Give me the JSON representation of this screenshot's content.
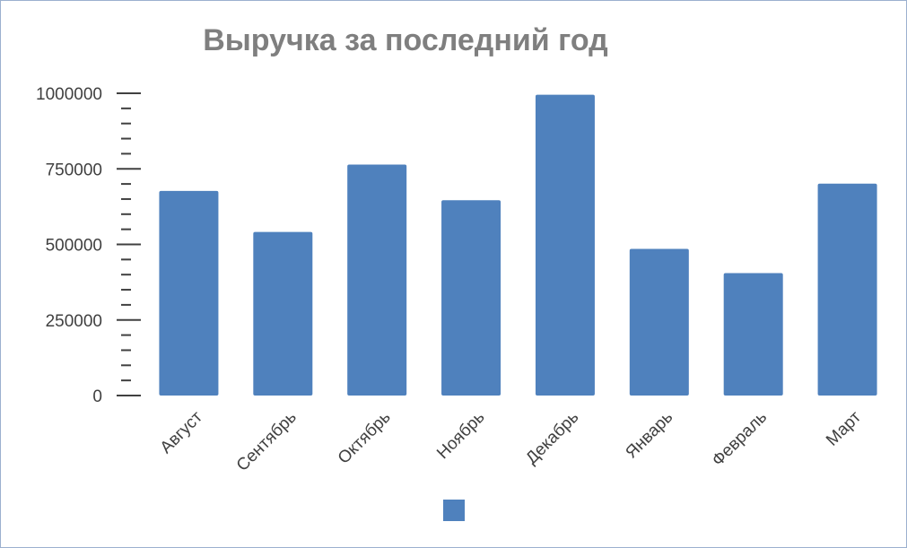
{
  "chart_data": {
    "type": "bar",
    "title": "Выручка за последний год",
    "categories": [
      "Август",
      "Сентябрь",
      "Октябрь",
      "Ноябрь",
      "Декабрь",
      "Январь",
      "Февраль",
      "Март"
    ],
    "series": [
      {
        "values": [
          677000,
          541000,
          764000,
          646000,
          995000,
          485000,
          405000,
          701000
        ]
      }
    ],
    "yticks": [
      "0",
      "250000",
      "500000",
      "750000",
      "1000000"
    ],
    "ylim": [
      0,
      1000000
    ],
    "grid": false,
    "legend": "bottom",
    "colors": {
      "bar": "#4f81bd",
      "axis": "#404040"
    }
  }
}
